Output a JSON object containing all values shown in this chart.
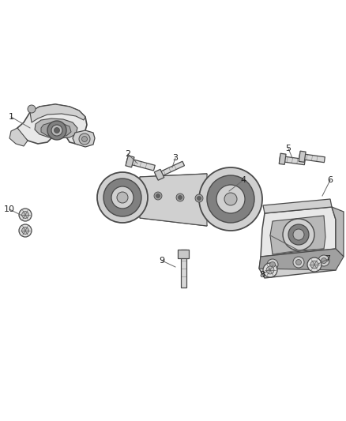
{
  "bg_color": "#ffffff",
  "lc": "#4a4a4a",
  "fill_light": "#e8e8e8",
  "fill_mid": "#d0d0d0",
  "fill_dark": "#b8b8b8",
  "fill_shadow": "#a0a0a0",
  "rubber_color": "#808080",
  "label_color": "#222222",
  "leader_color": "#666666",
  "figsize": [
    4.38,
    5.33
  ],
  "dpi": 100
}
